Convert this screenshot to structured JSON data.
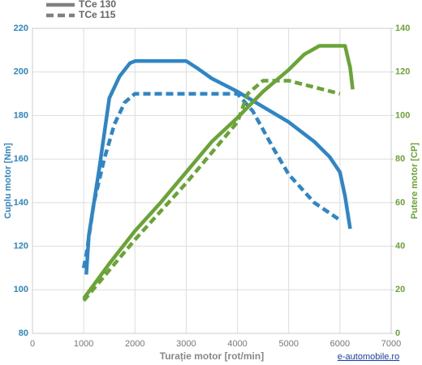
{
  "chart_data": {
    "type": "line",
    "x_label": "Turație motor [rot/min]",
    "y_label": "Cuplu motor [Nm]",
    "y2_label": "Putere motor [CP]",
    "source": "e-automobile.ro",
    "legend": [
      {
        "name": "TCe 130",
        "dash": false
      },
      {
        "name": "TCe 115",
        "dash": true
      }
    ],
    "xlim": [
      0,
      7000
    ],
    "xticks": [
      0,
      1000,
      2000,
      3000,
      4000,
      5000,
      6000,
      7000
    ],
    "ylim": [
      80,
      220
    ],
    "yticks": [
      80,
      100,
      120,
      140,
      160,
      180,
      200,
      220
    ],
    "y2lim": [
      0,
      140
    ],
    "y2ticks": [
      0,
      20,
      40,
      60,
      80,
      100,
      120,
      140
    ],
    "grid": true,
    "series": [
      {
        "axis": "y",
        "color": "#2f86c6",
        "dash": false,
        "x": [
          1050,
          1100,
          1300,
          1500,
          1700,
          1900,
          2000,
          3000,
          3200,
          3500,
          4000,
          4500,
          5000,
          5500,
          5800,
          6000,
          6100,
          6200
        ],
        "values": [
          107,
          125,
          155,
          188,
          198,
          204,
          205,
          205,
          202,
          197,
          191,
          184,
          177,
          168,
          161,
          154,
          143,
          128
        ]
      },
      {
        "axis": "y",
        "color": "#2f86c6",
        "dash": true,
        "x": [
          1000,
          1050,
          1200,
          1400,
          1600,
          1800,
          2000,
          3000,
          4000,
          4300,
          4700,
          5000,
          5500,
          6000
        ],
        "values": [
          110,
          116,
          140,
          160,
          176,
          186,
          190,
          190,
          190,
          182,
          165,
          153,
          140,
          132
        ]
      },
      {
        "axis": "y2",
        "color": "#6aa336",
        "dash": false,
        "x": [
          1000,
          1500,
          2000,
          2500,
          3000,
          3500,
          4000,
          4500,
          5000,
          5300,
          5600,
          6100,
          6200,
          6250
        ],
        "values": [
          16,
          32,
          47,
          60,
          74,
          88,
          99,
          111,
          121,
          128,
          132,
          132,
          122,
          112
        ]
      },
      {
        "axis": "y2",
        "color": "#6aa336",
        "dash": true,
        "x": [
          1000,
          1500,
          2000,
          2500,
          3000,
          3500,
          4000,
          4200,
          4500,
          5000,
          5500,
          6000
        ],
        "values": [
          15,
          29,
          43,
          56,
          69,
          83,
          97,
          110,
          116,
          116,
          113,
          110
        ]
      }
    ]
  }
}
